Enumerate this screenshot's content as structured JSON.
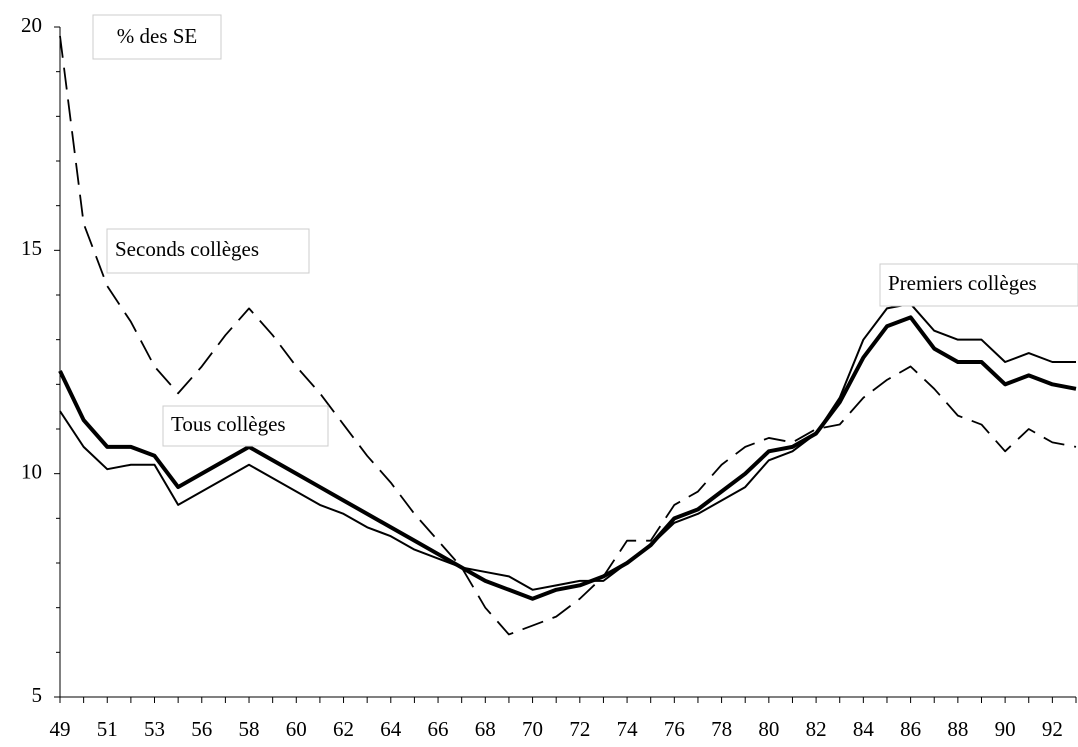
{
  "chart_data": {
    "type": "line",
    "y_label": "% des SE",
    "categories": [
      "49",
      null,
      "51",
      null,
      "53",
      null,
      "56",
      null,
      "58",
      null,
      "60",
      null,
      "62",
      null,
      "64",
      null,
      "66",
      null,
      "68",
      null,
      "70",
      null,
      "72",
      null,
      "74",
      null,
      "76",
      null,
      "78",
      null,
      "80",
      null,
      "82",
      null,
      "84",
      null,
      "86",
      null,
      "88",
      null,
      "90",
      null,
      "92",
      null
    ],
    "ylim": [
      5,
      20
    ],
    "yticks": [
      5,
      10,
      15,
      20
    ],
    "yminor_ticks": [
      6,
      7,
      8,
      9,
      11,
      12,
      13,
      14,
      16,
      17,
      18,
      19
    ],
    "grid": false,
    "series": [
      {
        "name": "Seconds collèges",
        "color": "#000000",
        "line_style": "dashed",
        "values": [
          19.8,
          15.6,
          14.2,
          13.4,
          12.4,
          11.8,
          12.4,
          13.1,
          13.7,
          13.1,
          12.4,
          11.8,
          11.1,
          10.4,
          9.8,
          9.1,
          8.5,
          7.9,
          7.0,
          6.4,
          6.6,
          6.8,
          7.2,
          7.7,
          8.5,
          8.5,
          9.3,
          9.6,
          10.2,
          10.6,
          10.8,
          10.7,
          11.0,
          11.1,
          11.7,
          12.1,
          12.4,
          11.9,
          11.3,
          11.1,
          10.5,
          11.0,
          10.7,
          10.6
        ]
      },
      {
        "name": "Tous collèges",
        "color": "#000000",
        "line_style": "solid",
        "values": [
          12.3,
          11.2,
          10.6,
          10.6,
          10.4,
          9.7,
          10.0,
          10.3,
          10.6,
          10.3,
          10.0,
          9.7,
          9.4,
          9.1,
          8.8,
          8.5,
          8.2,
          7.9,
          7.6,
          7.4,
          7.2,
          7.4,
          7.5,
          7.7,
          8.0,
          8.4,
          9.0,
          9.2,
          9.6,
          10.0,
          10.5,
          10.6,
          10.9,
          11.6,
          12.6,
          13.3,
          13.5,
          12.8,
          12.5,
          12.5,
          12.0,
          12.2,
          12.0,
          11.9
        ]
      },
      {
        "name": "Premiers collèges",
        "color": "#000000",
        "line_style": "solid",
        "values": [
          11.4,
          10.6,
          10.1,
          10.2,
          10.2,
          9.3,
          9.6,
          9.9,
          10.2,
          9.9,
          9.6,
          9.3,
          9.1,
          8.8,
          8.6,
          8.3,
          8.1,
          7.9,
          7.8,
          7.7,
          7.4,
          7.5,
          7.6,
          7.6,
          8.0,
          8.4,
          8.9,
          9.1,
          9.4,
          9.7,
          10.3,
          10.5,
          10.9,
          11.7,
          13.0,
          13.7,
          13.8,
          13.2,
          13.0,
          13.0,
          12.5,
          12.7,
          12.5,
          12.5
        ]
      }
    ]
  }
}
